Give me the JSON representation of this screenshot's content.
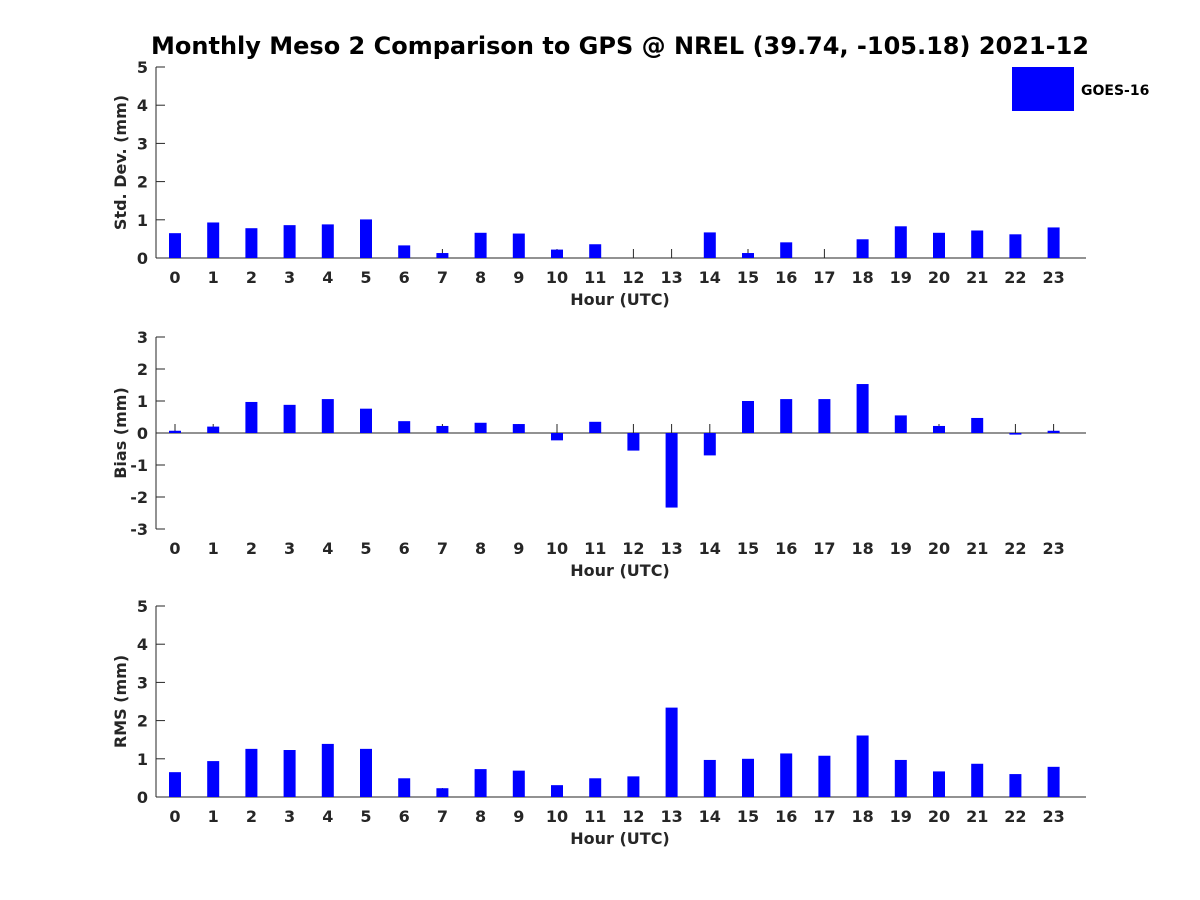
{
  "figure": {
    "title": "Monthly Meso 2 Comparison to GPS @ NREL (39.74, -105.18) 2021-12",
    "legend": {
      "label": "GOES-16",
      "color": "#0000ff"
    }
  },
  "chart_data": [
    {
      "type": "bar",
      "xlabel": "Hour (UTC)",
      "ylabel": "Std. Dev. (mm)",
      "ylim": [
        0,
        5
      ],
      "yticks": [
        "0",
        "1",
        "2",
        "3",
        "4",
        "5"
      ],
      "categories": [
        "0",
        "1",
        "2",
        "3",
        "4",
        "5",
        "6",
        "7",
        "8",
        "9",
        "10",
        "11",
        "12",
        "13",
        "14",
        "15",
        "16",
        "17",
        "18",
        "19",
        "20",
        "21",
        "22",
        "23"
      ],
      "series": [
        {
          "name": "GOES-16",
          "color": "#0000ff",
          "values": [
            0.65,
            0.93,
            0.78,
            0.86,
            0.88,
            1.01,
            0.33,
            0.13,
            0.66,
            0.64,
            0.22,
            0.36,
            0,
            0,
            0.67,
            0.13,
            0.41,
            0,
            0.49,
            0.83,
            0.66,
            0.72,
            0.62,
            0.8
          ]
        }
      ],
      "grid": false,
      "legend": "top-right"
    },
    {
      "type": "bar",
      "xlabel": "Hour (UTC)",
      "ylabel": "Bias (mm)",
      "ylim": [
        -3,
        3
      ],
      "yticks": [
        "-3",
        "-2",
        "-1",
        "0",
        "1",
        "2",
        "3"
      ],
      "categories": [
        "0",
        "1",
        "2",
        "3",
        "4",
        "5",
        "6",
        "7",
        "8",
        "9",
        "10",
        "11",
        "12",
        "13",
        "14",
        "15",
        "16",
        "17",
        "18",
        "19",
        "20",
        "21",
        "22",
        "23"
      ],
      "series": [
        {
          "name": "GOES-16",
          "color": "#0000ff",
          "values": [
            0.07,
            0.2,
            0.97,
            0.88,
            1.06,
            0.76,
            0.37,
            0.22,
            0.32,
            0.28,
            -0.23,
            0.35,
            -0.55,
            -2.33,
            -0.7,
            1.0,
            1.06,
            1.06,
            1.53,
            0.55,
            0.22,
            0.47,
            -0.05,
            0.07
          ]
        }
      ],
      "grid": false
    },
    {
      "type": "bar",
      "xlabel": "Hour (UTC)",
      "ylabel": "RMS (mm)",
      "ylim": [
        0,
        5
      ],
      "yticks": [
        "0",
        "1",
        "2",
        "3",
        "4",
        "5"
      ],
      "categories": [
        "0",
        "1",
        "2",
        "3",
        "4",
        "5",
        "6",
        "7",
        "8",
        "9",
        "10",
        "11",
        "12",
        "13",
        "14",
        "15",
        "16",
        "17",
        "18",
        "19",
        "20",
        "21",
        "22",
        "23"
      ],
      "series": [
        {
          "name": "GOES-16",
          "color": "#0000ff",
          "values": [
            0.65,
            0.94,
            1.26,
            1.23,
            1.39,
            1.26,
            0.49,
            0.23,
            0.73,
            0.69,
            0.31,
            0.49,
            0.54,
            2.34,
            0.97,
            1.0,
            1.14,
            1.08,
            1.61,
            0.97,
            0.67,
            0.87,
            0.6,
            0.79
          ]
        }
      ],
      "grid": false
    }
  ]
}
